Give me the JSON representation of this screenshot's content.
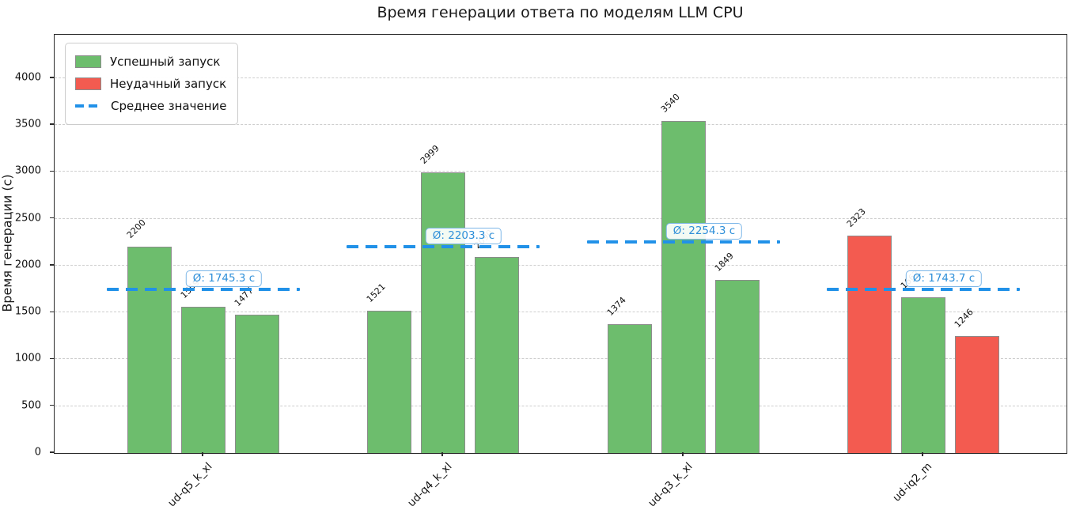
{
  "figure": {
    "title": "Время генерации ответа по моделям LLM CPU",
    "ylabel": "Время генерации (с)"
  },
  "legend": {
    "position": "upper-left",
    "items": [
      {
        "label": "Успешный запуск",
        "marker": "patch",
        "color_key": "success"
      },
      {
        "label": "Неудачный запуск",
        "marker": "patch",
        "color_key": "failure"
      },
      {
        "label": "Среднее значение",
        "marker": "dashed-line",
        "color_key": "mean_line"
      }
    ]
  },
  "chart_data": {
    "type": "bar",
    "title": "Время генерации ответа по моделям LLM CPU",
    "xlabel": "",
    "ylabel": "Время генерации (с)",
    "ylim": [
      0,
      4463
    ],
    "yticks": [
      0,
      500,
      1000,
      1500,
      2000,
      2500,
      3000,
      3500,
      4000
    ],
    "grid": "horizontal-dashed",
    "legend_position": "upper-left",
    "categories": [
      "ud-q5_k_xl",
      "ud-q4_k_xl",
      "ud-q3_k_xl",
      "ud-iq2_m"
    ],
    "groups": [
      {
        "category": "ud-q5_k_xl",
        "bars": [
          {
            "value": 2200,
            "status": "success"
          },
          {
            "value": 1559,
            "status": "success"
          },
          {
            "value": 1477,
            "status": "success"
          }
        ],
        "mean": 1745.3,
        "mean_label": "Ø: 1745.3 с"
      },
      {
        "category": "ud-q4_k_xl",
        "bars": [
          {
            "value": 1521,
            "status": "success"
          },
          {
            "value": 2999,
            "status": "success"
          },
          {
            "value": 2090,
            "status": "success"
          }
        ],
        "mean": 2203.3,
        "mean_label": "Ø: 2203.3 с"
      },
      {
        "category": "ud-q3_k_xl",
        "bars": [
          {
            "value": 1374,
            "status": "success"
          },
          {
            "value": 3540,
            "status": "success"
          },
          {
            "value": 1849,
            "status": "success"
          }
        ],
        "mean": 2254.3,
        "mean_label": "Ø: 2254.3 с"
      },
      {
        "category": "ud-iq2_m",
        "bars": [
          {
            "value": 2323,
            "status": "failure"
          },
          {
            "value": 1662,
            "status": "success"
          },
          {
            "value": 1246,
            "status": "failure"
          }
        ],
        "mean": 1743.7,
        "mean_label": "Ø: 1743.7 с"
      }
    ],
    "colors": {
      "success": "#6dbd6d",
      "failure": "#f35b50",
      "bar_edge": "#8c8c8c",
      "mean_line": "#2191e8",
      "mean_badge_border": "#7db7e8",
      "mean_badge_text": "#2e8fd9",
      "grid": "#cdcdcd"
    }
  }
}
